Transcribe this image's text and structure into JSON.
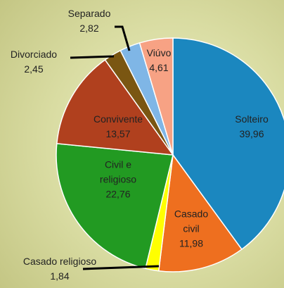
{
  "chart_data": {
    "type": "pie",
    "categories": [
      "Solteiro",
      "Casado civil",
      "Casado religioso",
      "Civil e religioso",
      "Convivente",
      "Divorciado",
      "Separado",
      "Viúvo"
    ],
    "values": [
      39.96,
      11.98,
      1.84,
      22.76,
      13.57,
      2.45,
      2.82,
      4.61
    ],
    "value_labels": [
      "39,96",
      "11,98",
      "1,84",
      "22,76",
      "13,57",
      "2,45",
      "2,82",
      "4,61"
    ],
    "colors": [
      "#1b87bf",
      "#ee6f1f",
      "#ffff00",
      "#229a22",
      "#b0401e",
      "#7a5612",
      "#7fb6e6",
      "#f7a284"
    ]
  }
}
